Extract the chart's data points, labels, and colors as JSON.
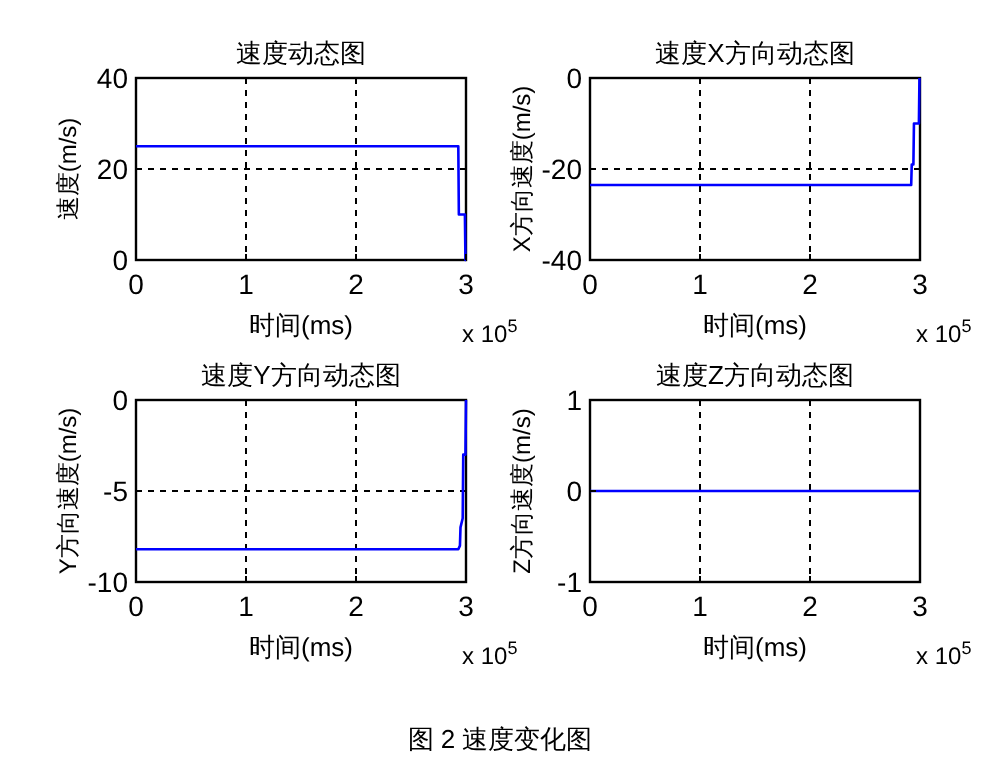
{
  "chart_data": [
    {
      "type": "line",
      "title": "速度动态图",
      "xlabel": "时间(ms)",
      "ylabel": "速度(m/s)",
      "xlim": [
        0,
        3
      ],
      "xticks": [
        0,
        1,
        2,
        3
      ],
      "ylim": [
        0,
        40
      ],
      "yticks": [
        0,
        20,
        40
      ],
      "grid": true,
      "line_style": "solid",
      "annotations": [
        "x 10$^{5}$"
      ],
      "series": [
        {
          "color": "#0000ff",
          "x": [
            0,
            2.93,
            2.935,
            2.965,
            2.97,
            2.99,
            2.995,
            3
          ],
          "values": [
            25,
            25,
            10,
            10,
            10,
            10,
            0,
            0
          ]
        }
      ]
    },
    {
      "type": "line",
      "title": "速度X方向动态图",
      "xlabel": "时间(ms)",
      "ylabel": "X方向速度(m/s)",
      "xlim": [
        0,
        3
      ],
      "xticks": [
        0,
        1,
        2,
        3
      ],
      "ylim": [
        -40,
        0
      ],
      "yticks": [
        -40,
        -20,
        0
      ],
      "grid": true,
      "line_style": "solid",
      "annotations": [
        "x 10$^{5}$"
      ],
      "series": [
        {
          "color": "#0000ff",
          "x": [
            0,
            2.92,
            2.925,
            2.93,
            2.94,
            2.945,
            2.99,
            2.995
          ],
          "values": [
            -23.5,
            -23.5,
            -19,
            -19,
            -19,
            -10,
            -10,
            0
          ]
        }
      ]
    },
    {
      "type": "line",
      "title": "速度Y方向动态图",
      "xlabel": "时间(ms)",
      "ylabel": "Y方向速度(m/s)",
      "xlim": [
        0,
        3
      ],
      "xticks": [
        0,
        1,
        2,
        3
      ],
      "ylim": [
        -10,
        0
      ],
      "yticks": [
        -10,
        -5,
        0
      ],
      "grid": true,
      "line_style": "solid",
      "annotations": [
        "x 10$^{5}$"
      ],
      "series": [
        {
          "color": "#0000ff",
          "x": [
            0,
            2.93,
            2.945,
            2.95,
            2.97,
            2.975,
            2.995,
            3
          ],
          "values": [
            -8.2,
            -8.2,
            -8,
            -7,
            -6.5,
            -3,
            -3,
            0
          ]
        }
      ]
    },
    {
      "type": "line",
      "title": "速度Z方向动态图",
      "xlabel": "时间(ms)",
      "ylabel": "Z方向速度(m/s)",
      "xlim": [
        0,
        3
      ],
      "xticks": [
        0,
        1,
        2,
        3
      ],
      "ylim": [
        -1,
        1
      ],
      "yticks": [
        -1,
        0,
        1
      ],
      "grid": true,
      "line_style": "solid",
      "annotations": [
        "x 10$^{5}$",
        "图 2 速度变化图"
      ],
      "series": [
        {
          "color": "#0000ff",
          "x": [
            0,
            3
          ],
          "values": [
            0,
            0
          ]
        }
      ]
    }
  ]
}
